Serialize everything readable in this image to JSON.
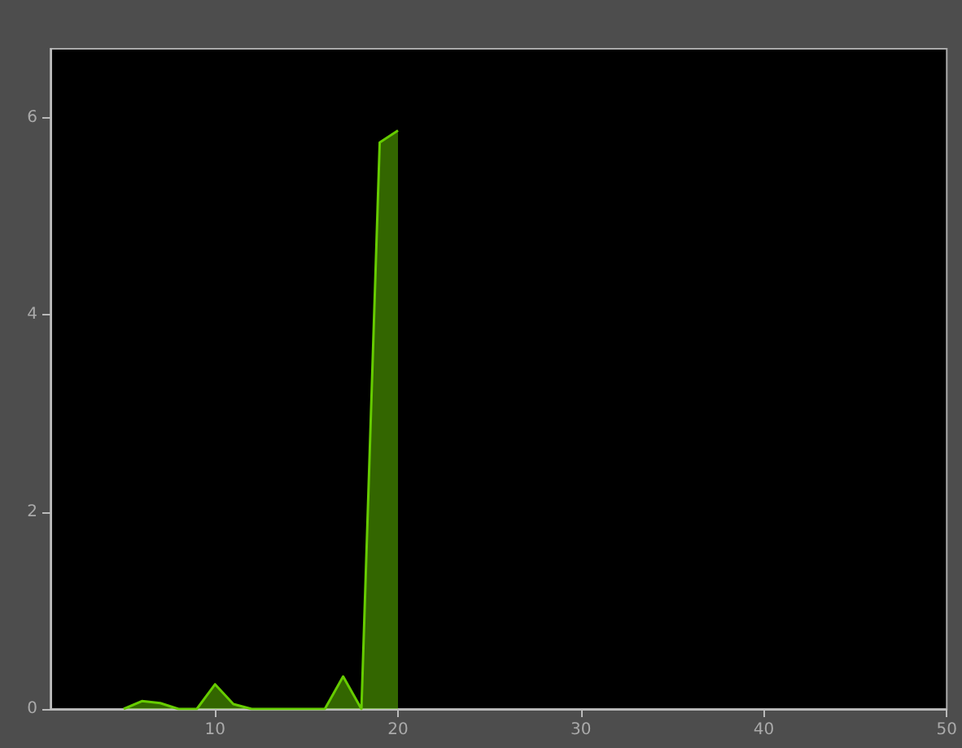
{
  "chart_data": {
    "type": "area",
    "x": [
      5,
      6,
      7,
      8,
      9,
      10,
      11,
      12,
      13,
      14,
      15,
      16,
      17,
      18,
      19,
      20
    ],
    "series": [
      {
        "color": "#66cc00",
        "values": [
          0,
          0.08,
          0.06,
          0,
          0,
          0.25,
          0.05,
          0,
          0,
          0,
          0,
          0,
          0.33,
          0,
          5.75,
          5.87
        ]
      }
    ],
    "xlim": [
      1,
      50
    ],
    "xticks": [
      10,
      20,
      30,
      40,
      50
    ],
    "ylim": [
      0,
      6.7
    ],
    "yticks": [
      0,
      2,
      4,
      6
    ],
    "grid": false,
    "marker": "none",
    "line_style": "solid"
  }
}
